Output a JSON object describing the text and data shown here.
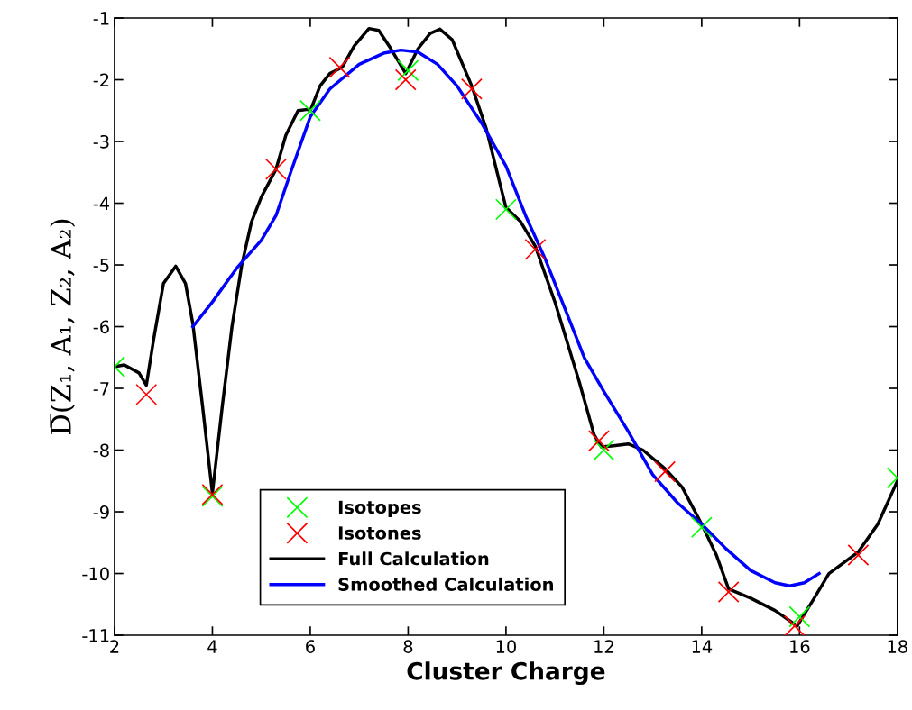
{
  "chart_data": {
    "type": "line",
    "xlabel": "Cluster Charge",
    "ylabel": "D̅(Z₁, A₁, Z₂, A₂)",
    "xlim": [
      2,
      18
    ],
    "ylim": [
      -11,
      -1
    ],
    "xticks": [
      2,
      4,
      6,
      8,
      10,
      12,
      14,
      16,
      18
    ],
    "yticks": [
      -11,
      -10,
      -9,
      -8,
      -7,
      -6,
      -5,
      -4,
      -3,
      -2,
      -1
    ],
    "grid": false,
    "legend": "bottom",
    "series": [
      {
        "name": "Isotopes",
        "type": "scatter",
        "marker": "cross",
        "color": "#00ff00",
        "x": [
          2,
          4,
          6,
          8,
          10,
          12,
          14,
          16,
          18
        ],
        "values": [
          -6.65,
          -8.75,
          -2.5,
          -1.85,
          -4.1,
          -8.0,
          -9.25,
          -10.7,
          -8.45
        ]
      },
      {
        "name": "Isotones",
        "type": "scatter",
        "marker": "cross",
        "color": "#ff0000",
        "x": [
          2.65,
          4,
          5.3,
          6.6,
          7.95,
          9.3,
          10.6,
          11.9,
          13.25,
          14.55,
          15.9,
          17.2
        ],
        "values": [
          -7.1,
          -8.72,
          -3.45,
          -1.8,
          -2.0,
          -2.15,
          -4.75,
          -7.85,
          -8.35,
          -10.3,
          -10.85,
          -9.7
        ]
      },
      {
        "name": "Full Calculation",
        "marker": "none",
        "color": "#000000",
        "x": [
          2,
          2.2,
          2.5,
          2.65,
          2.8,
          3.0,
          3.25,
          3.45,
          3.6,
          3.8,
          4.0,
          4.2,
          4.4,
          4.6,
          4.8,
          5.0,
          5.3,
          5.5,
          5.75,
          5.95,
          6.0,
          6.2,
          6.4,
          6.65,
          6.9,
          7.2,
          7.4,
          7.65,
          7.95,
          8.2,
          8.45,
          8.65,
          8.9,
          9.3,
          9.6,
          9.85,
          10.0,
          10.3,
          10.6,
          11.0,
          11.5,
          11.8,
          11.95,
          12.2,
          12.5,
          12.8,
          13.25,
          13.6,
          14.0,
          14.3,
          14.55,
          15.0,
          15.5,
          15.95,
          16.3,
          16.6,
          17.2,
          17.6,
          18
        ],
        "values": [
          -6.65,
          -6.62,
          -6.75,
          -6.95,
          -6.2,
          -5.3,
          -5.02,
          -5.3,
          -5.95,
          -7.3,
          -8.7,
          -7.3,
          -6.0,
          -5.0,
          -4.3,
          -3.9,
          -3.45,
          -2.9,
          -2.5,
          -2.48,
          -2.5,
          -2.1,
          -1.9,
          -1.8,
          -1.45,
          -1.17,
          -1.2,
          -1.5,
          -1.9,
          -1.5,
          -1.25,
          -1.18,
          -1.35,
          -2.1,
          -2.8,
          -3.6,
          -4.07,
          -4.3,
          -4.7,
          -5.6,
          -6.9,
          -7.75,
          -7.95,
          -7.93,
          -7.9,
          -8.0,
          -8.3,
          -8.6,
          -9.2,
          -9.7,
          -10.25,
          -10.4,
          -10.6,
          -10.85,
          -10.4,
          -10.0,
          -9.65,
          -9.2,
          -8.5
        ]
      },
      {
        "name": "Smoothed Calculation",
        "marker": "none",
        "color": "#0000ff",
        "x": [
          3.6,
          4.0,
          4.5,
          5.0,
          5.3,
          5.6,
          6.0,
          6.4,
          7.0,
          7.5,
          7.85,
          8.2,
          8.6,
          9.0,
          9.5,
          10.0,
          10.4,
          10.8,
          11.2,
          11.6,
          12.0,
          12.5,
          13.0,
          13.5,
          14.0,
          14.5,
          15.0,
          15.5,
          15.8,
          16.1,
          16.4
        ],
        "values": [
          -6.0,
          -5.6,
          -5.05,
          -4.6,
          -4.2,
          -3.5,
          -2.6,
          -2.15,
          -1.75,
          -1.57,
          -1.52,
          -1.55,
          -1.75,
          -2.1,
          -2.7,
          -3.4,
          -4.2,
          -4.9,
          -5.7,
          -6.5,
          -7.05,
          -7.7,
          -8.4,
          -8.85,
          -9.2,
          -9.6,
          -9.95,
          -10.15,
          -10.2,
          -10.15,
          -10.0
        ]
      }
    ]
  }
}
